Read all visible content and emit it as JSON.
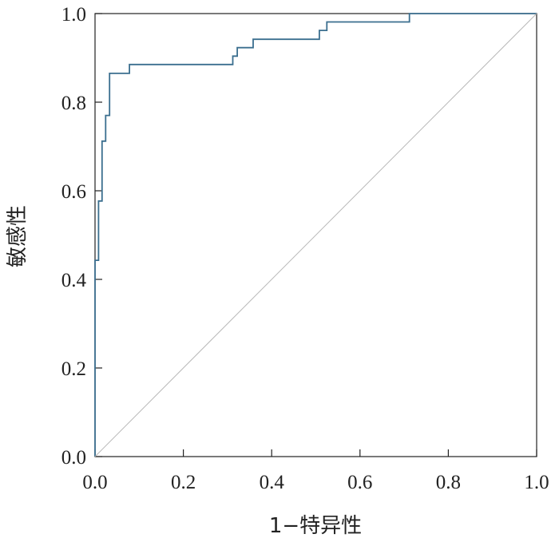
{
  "chart_data": {
    "type": "line",
    "title": "",
    "xlabel": "1−特异性",
    "ylabel": "敏感性",
    "xlim": [
      0,
      1
    ],
    "ylim": [
      0,
      1
    ],
    "x_ticks": [
      "0.0",
      "0.2",
      "0.4",
      "0.6",
      "0.8",
      "1.0"
    ],
    "y_ticks": [
      "0.0",
      "0.2",
      "0.4",
      "0.6",
      "0.8",
      "1.0"
    ],
    "grid": false,
    "legend": "none",
    "series": [
      {
        "style": "step",
        "color": "#3b6f8f",
        "points": [
          [
            0.0,
            0.0
          ],
          [
            0.0,
            0.443
          ],
          [
            0.008,
            0.443
          ],
          [
            0.008,
            0.577
          ],
          [
            0.016,
            0.577
          ],
          [
            0.016,
            0.712
          ],
          [
            0.024,
            0.712
          ],
          [
            0.024,
            0.77
          ],
          [
            0.033,
            0.77
          ],
          [
            0.033,
            0.865
          ],
          [
            0.078,
            0.865
          ],
          [
            0.078,
            0.885
          ],
          [
            0.312,
            0.885
          ],
          [
            0.312,
            0.904
          ],
          [
            0.322,
            0.904
          ],
          [
            0.322,
            0.923
          ],
          [
            0.358,
            0.923
          ],
          [
            0.358,
            0.942
          ],
          [
            0.508,
            0.942
          ],
          [
            0.508,
            0.962
          ],
          [
            0.525,
            0.962
          ],
          [
            0.525,
            0.981
          ],
          [
            0.712,
            0.981
          ],
          [
            0.712,
            1.0
          ],
          [
            1.0,
            1.0
          ]
        ]
      },
      {
        "style": "reference",
        "color": "#b8b8b8",
        "points": [
          [
            0,
            0
          ],
          [
            1,
            1
          ]
        ]
      }
    ]
  }
}
